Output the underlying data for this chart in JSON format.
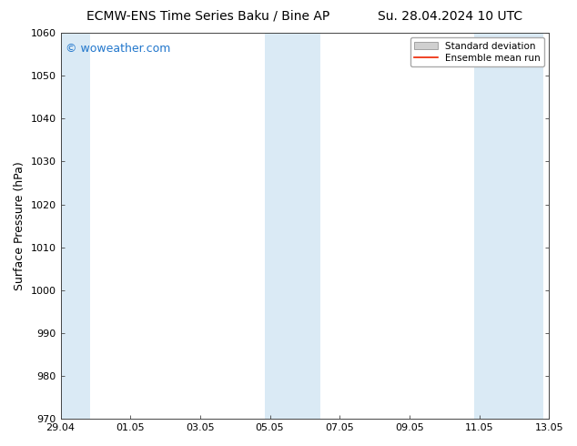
{
  "title_left": "ECMW-ENS Time Series Baku / Bine AP",
  "title_right": "Su. 28.04.2024 10 UTC",
  "ylabel": "Surface Pressure (hPa)",
  "ylim": [
    970,
    1060
  ],
  "yticks": [
    970,
    980,
    990,
    1000,
    1010,
    1020,
    1030,
    1040,
    1050,
    1060
  ],
  "xtick_labels": [
    "29.04",
    "01.05",
    "03.05",
    "05.05",
    "07.05",
    "09.05",
    "11.05",
    "13.05"
  ],
  "xtick_positions_days": [
    0,
    2,
    4,
    6,
    8,
    10,
    12,
    14
  ],
  "xlim": [
    0,
    14
  ],
  "shaded_bands": [
    {
      "start_day": -0.15,
      "end_day": 0.85
    },
    {
      "start_day": 5.85,
      "end_day": 6.55
    },
    {
      "start_day": 6.55,
      "end_day": 7.45
    },
    {
      "start_day": 11.85,
      "end_day": 12.55
    },
    {
      "start_day": 12.55,
      "end_day": 13.85
    }
  ],
  "shade_color": "#daeaf5",
  "background_color": "#ffffff",
  "spine_color": "#444444",
  "watermark_text": "© woweather.com",
  "watermark_color": "#2277cc",
  "legend_std_label": "Standard deviation",
  "legend_mean_label": "Ensemble mean run",
  "legend_std_facecolor": "#d0d0d0",
  "legend_std_edgecolor": "#888888",
  "legend_mean_color": "#ee2200",
  "title_fontsize": 10,
  "tick_fontsize": 8,
  "ylabel_fontsize": 9,
  "watermark_fontsize": 9
}
